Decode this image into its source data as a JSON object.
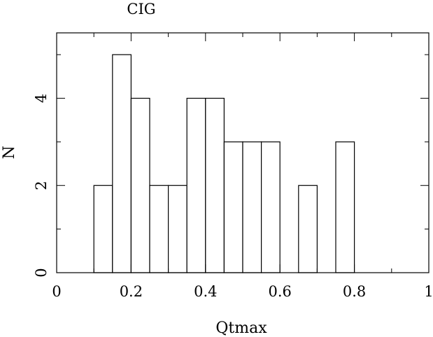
{
  "chart_data": {
    "type": "bar",
    "title": "CIG",
    "xlabel": "Qtmax",
    "ylabel": "N",
    "xlim": [
      0,
      1
    ],
    "ylim": [
      0,
      5.5
    ],
    "bin_width": 0.05,
    "bins": [
      {
        "x0": 0.1,
        "count": 2
      },
      {
        "x0": 0.15,
        "count": 5
      },
      {
        "x0": 0.2,
        "count": 4
      },
      {
        "x0": 0.25,
        "count": 2
      },
      {
        "x0": 0.3,
        "count": 2
      },
      {
        "x0": 0.35,
        "count": 4
      },
      {
        "x0": 0.4,
        "count": 4
      },
      {
        "x0": 0.45,
        "count": 3
      },
      {
        "x0": 0.5,
        "count": 3
      },
      {
        "x0": 0.55,
        "count": 3
      },
      {
        "x0": 0.6,
        "count": 0
      },
      {
        "x0": 0.65,
        "count": 2
      },
      {
        "x0": 0.7,
        "count": 0
      },
      {
        "x0": 0.75,
        "count": 3
      }
    ],
    "x_ticks": [
      {
        "value": 0,
        "label": "0"
      },
      {
        "value": 0.2,
        "label": "0.2"
      },
      {
        "value": 0.4,
        "label": "0.4"
      },
      {
        "value": 0.6,
        "label": "0.6"
      },
      {
        "value": 0.8,
        "label": "0.8"
      },
      {
        "value": 1,
        "label": "1"
      }
    ],
    "x_minor_step": 0.1,
    "y_ticks": [
      {
        "value": 0,
        "label": "0"
      },
      {
        "value": 2,
        "label": "2"
      },
      {
        "value": 4,
        "label": "4"
      }
    ],
    "y_minor_step": 1,
    "grid": false,
    "legend": "none"
  }
}
